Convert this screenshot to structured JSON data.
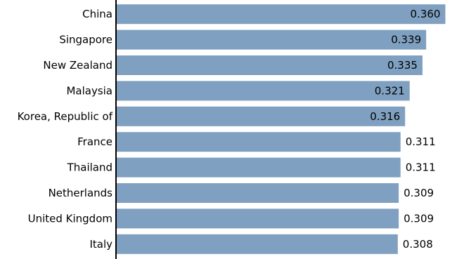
{
  "chart_data": {
    "type": "bar",
    "orientation": "horizontal",
    "categories": [
      "China",
      "Singapore",
      "New Zealand",
      "Malaysia",
      "Korea, Republic of",
      "France",
      "Thailand",
      "Netherlands",
      "United Kingdom",
      "Italy"
    ],
    "values": [
      0.36,
      0.339,
      0.335,
      0.321,
      0.316,
      0.311,
      0.311,
      0.309,
      0.309,
      0.308
    ],
    "value_labels": [
      "0.360",
      "0.339",
      "0.335",
      "0.321",
      "0.316",
      "0.311",
      "0.311",
      "0.309",
      "0.309",
      "0.308"
    ],
    "title": "",
    "xlabel": "",
    "ylabel": "",
    "xlim": [
      0,
      0.375
    ],
    "grid": false,
    "legend": "none"
  },
  "colors": {
    "bar": "#7fa0c0",
    "axis": "#000000",
    "text": "#000000",
    "background": "#ffffff"
  }
}
